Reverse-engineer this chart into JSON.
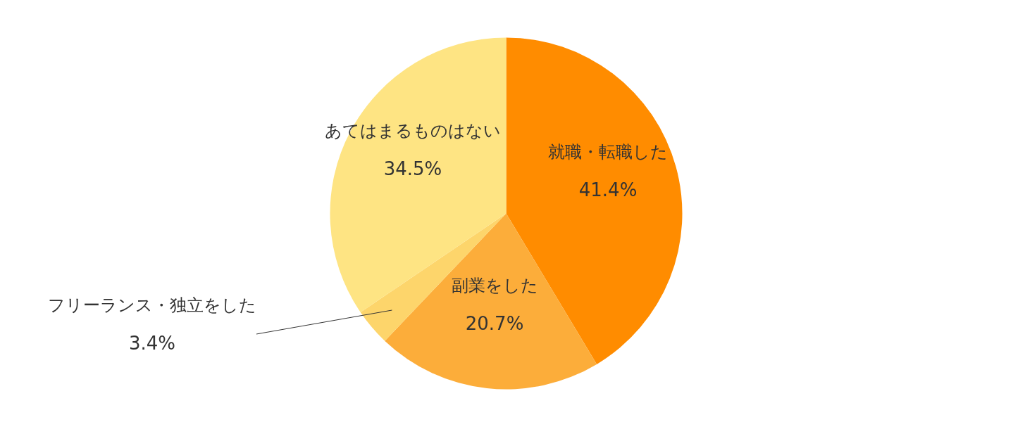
{
  "chart_data": {
    "type": "pie",
    "categories": [
      "就職・転職した",
      "副業をした",
      "フリーランス・独立をした",
      "あてはまるものはない"
    ],
    "values": [
      41.4,
      20.7,
      3.4,
      34.5
    ],
    "value_labels": [
      "41.4%",
      "20.7%",
      "3.4%",
      "34.5%"
    ],
    "colors": [
      "#ff8c00",
      "#fcad3a",
      "#fdd56b",
      "#fee483"
    ]
  }
}
